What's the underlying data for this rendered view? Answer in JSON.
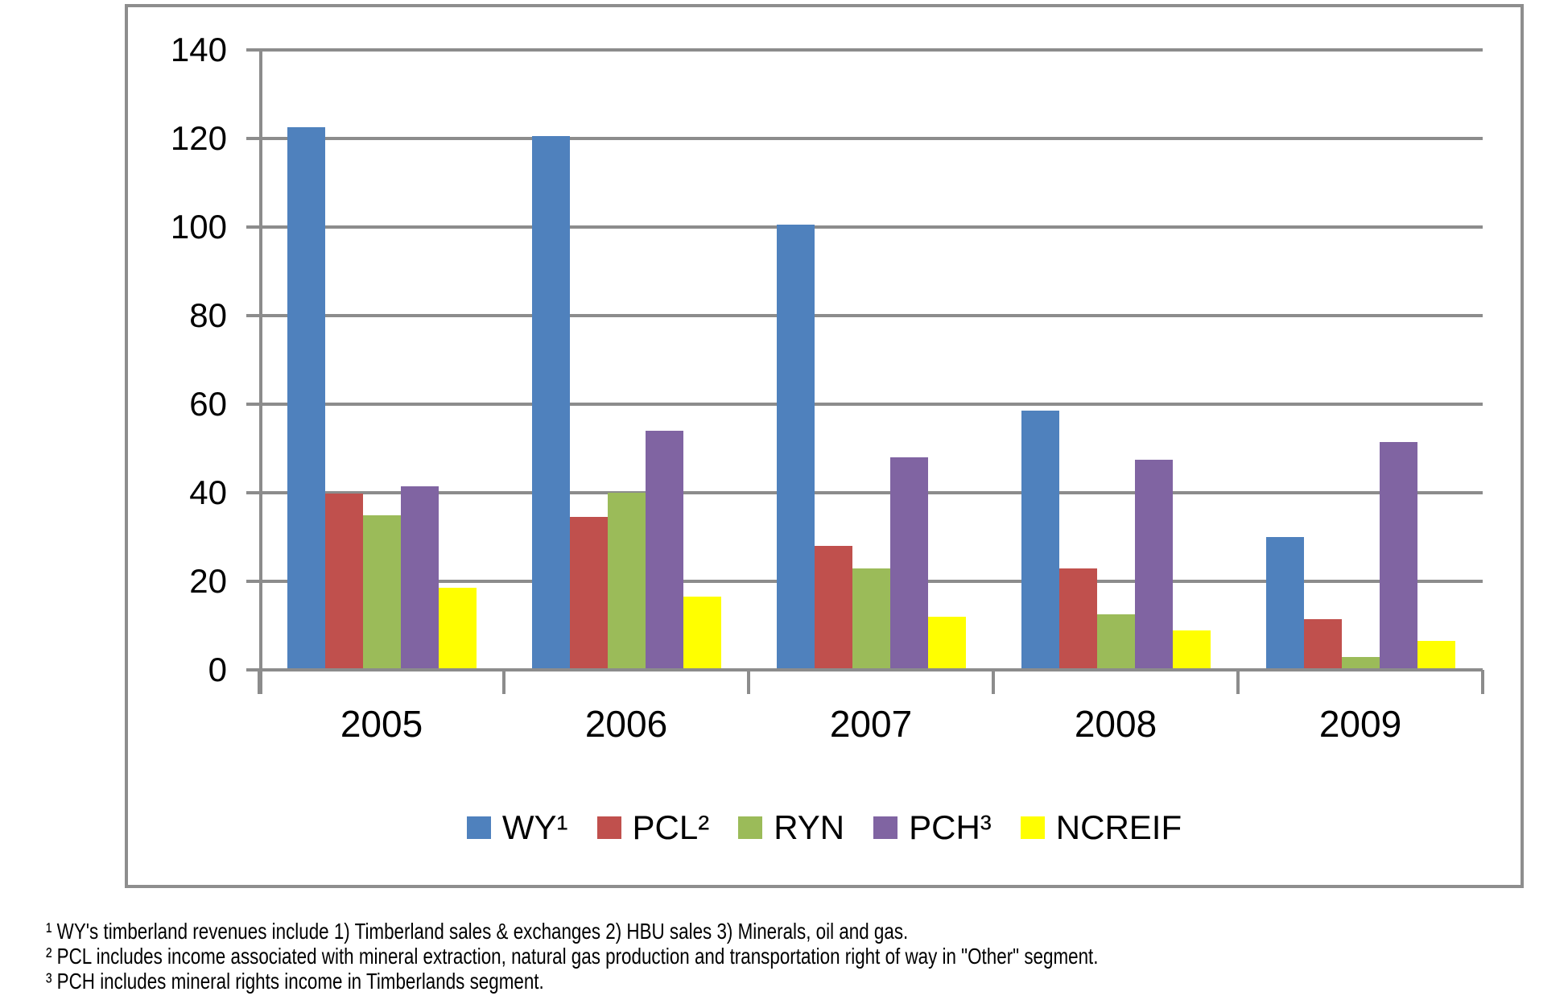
{
  "chart_data": {
    "type": "bar",
    "title": "",
    "xlabel": "",
    "ylabel": "",
    "categories": [
      "2005",
      "2006",
      "2007",
      "2008",
      "2009"
    ],
    "series": [
      {
        "name": "WY",
        "legend_label": "WY¹",
        "color": "#4F81BD",
        "values": [
          122.5,
          120.5,
          100.5,
          58.5,
          30
        ]
      },
      {
        "name": "PCL",
        "legend_label": "PCL²",
        "color": "#C0504D",
        "values": [
          39.8,
          34.5,
          28,
          23,
          11.5
        ]
      },
      {
        "name": "RYN",
        "legend_label": "RYN",
        "color": "#9BBB59",
        "values": [
          35,
          40,
          23,
          12.5,
          3
        ]
      },
      {
        "name": "PCH",
        "legend_label": "PCH³",
        "color": "#8064A2",
        "values": [
          41.5,
          54,
          48,
          47.5,
          51.5
        ]
      },
      {
        "name": "NCREIF",
        "legend_label": "NCREIF",
        "color": "#FFFF00",
        "values": [
          18.5,
          16.5,
          12,
          9,
          6.5
        ]
      }
    ],
    "ylim": [
      0,
      140
    ],
    "ytick_step": 20,
    "ytick_labels": [
      "0",
      "20",
      "40",
      "60",
      "80",
      "100",
      "120",
      "140"
    ],
    "grid": true,
    "legend_position": "bottom",
    "grid_color": "#8c8c8c"
  },
  "footnotes": [
    "¹ WY's timberland revenues include 1) Timberland sales & exchanges 2) HBU sales 3) Minerals, oil and gas.",
    "² PCL includes income associated with mineral extraction, natural gas production and transportation right of way in \"Other\" segment.",
    "³ PCH includes mineral rights income in Timberlands segment."
  ]
}
